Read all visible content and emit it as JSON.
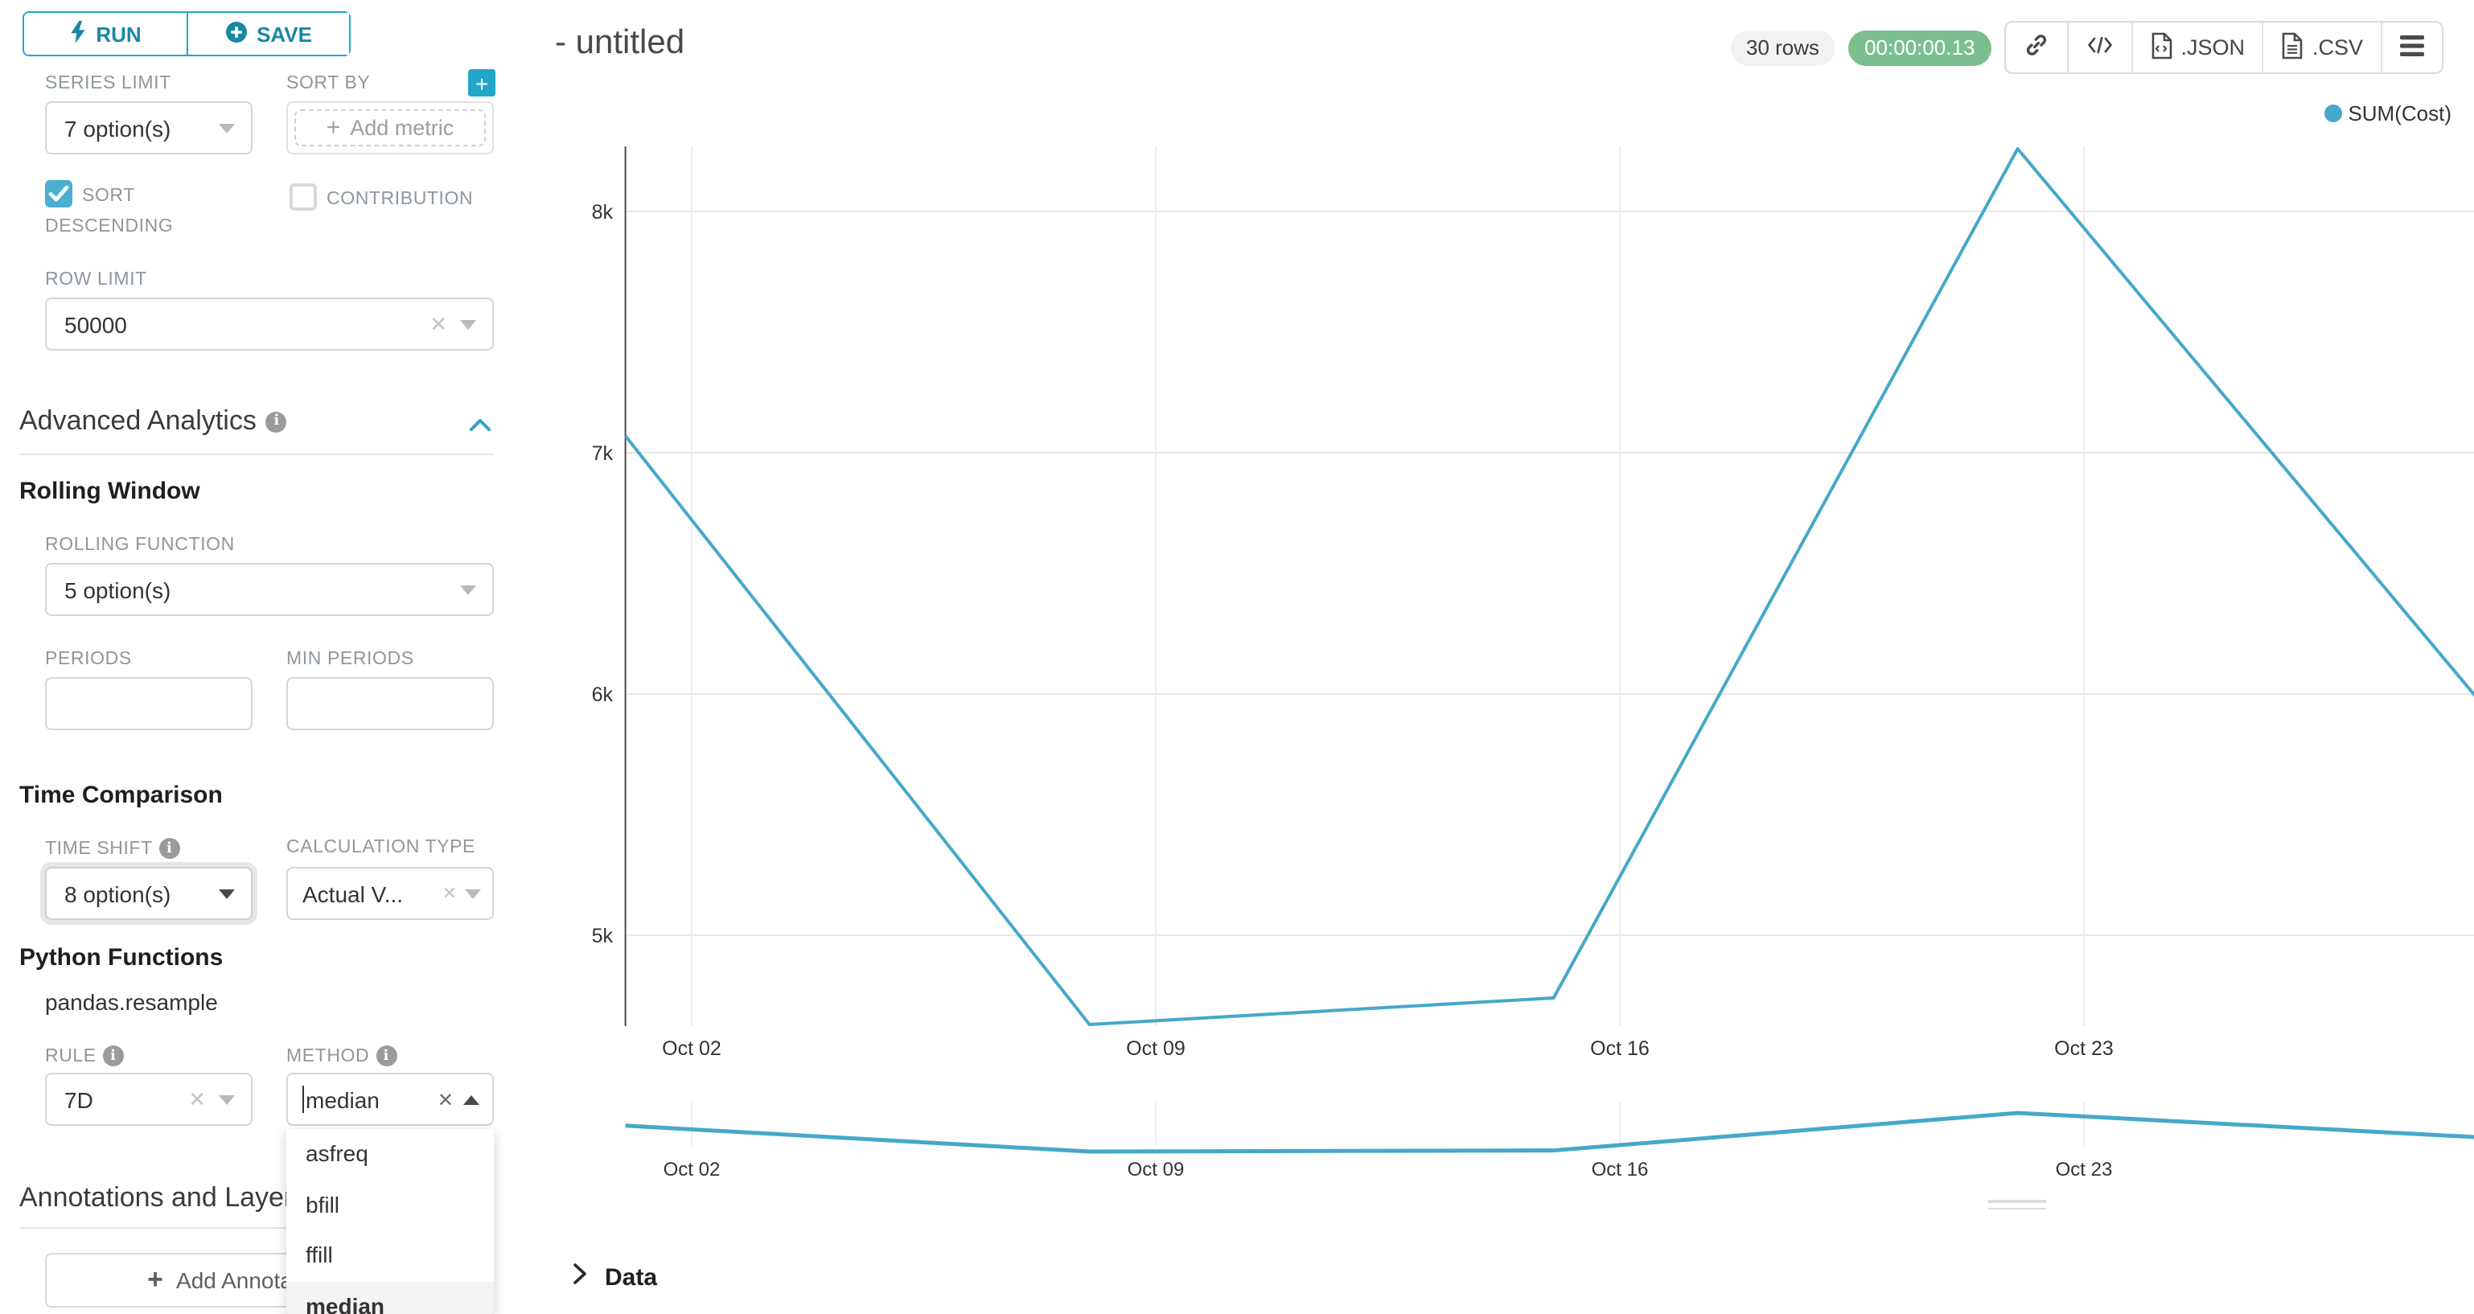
{
  "accent_color": "#20a7c9",
  "sidebar": {
    "run_label": "RUN",
    "save_label": "SAVE",
    "series_limit": {
      "label": "SERIES LIMIT",
      "value": "7 option(s)"
    },
    "sort_by": {
      "label": "SORT BY",
      "placeholder": "Add metric"
    },
    "sort_descending_label": "SORT DESCENDING",
    "contribution_label": "CONTRIBUTION",
    "row_limit": {
      "label": "ROW LIMIT",
      "value": "50000"
    },
    "advanced_analytics_title": "Advanced Analytics",
    "rolling_window": {
      "title": "Rolling Window",
      "rolling_function_label": "ROLLING FUNCTION",
      "rolling_function_value": "5 option(s)",
      "periods_label": "PERIODS",
      "min_periods_label": "MIN PERIODS"
    },
    "time_comparison": {
      "title": "Time Comparison",
      "time_shift_label": "TIME SHIFT",
      "time_shift_value": "8 option(s)",
      "calculation_type_label": "CALCULATION TYPE",
      "calculation_type_value": "Actual V..."
    },
    "python_functions": {
      "title": "Python Functions",
      "subtitle": "pandas.resample",
      "rule_label": "RULE",
      "rule_value": "7D",
      "method_label": "METHOD",
      "method_value": "median",
      "method_options": [
        "asfreq",
        "bfill",
        "ffill",
        "median"
      ],
      "method_selected": "median"
    },
    "annotations": {
      "title": "Annotations and Layers",
      "add_button_label": "Add Annotation Layer"
    }
  },
  "header": {
    "title": "- untitled",
    "rows_badge": "30 rows",
    "timer": "00:00:00.13",
    "timer_color": "#7cbf8e",
    "json_button": ".JSON",
    "csv_button": ".CSV"
  },
  "chart_data": {
    "type": "line",
    "title": "- untitled",
    "series": [
      {
        "name": "SUM(Cost)",
        "x": [
          "Oct 01",
          "Oct 08",
          "Oct 15",
          "Oct 22",
          "Oct 29"
        ],
        "values": [
          7070,
          4630,
          4740,
          8260,
          5960
        ]
      }
    ],
    "x_tick_labels": [
      "Oct 02",
      "Oct 09",
      "Oct 16",
      "Oct 23"
    ],
    "y_tick_labels": [
      "8k",
      "7k",
      "6k",
      "5k"
    ],
    "ylim": [
      4500,
      8450
    ],
    "grid": true,
    "legend_position": "top-right",
    "legend_entries": [
      "SUM(Cost)"
    ],
    "line_color": "#45a8c9",
    "mini_chart": {
      "x_tick_labels": [
        "Oct 02",
        "Oct 09",
        "Oct 16",
        "Oct 23"
      ]
    }
  },
  "data_panel": {
    "label": "Data"
  }
}
